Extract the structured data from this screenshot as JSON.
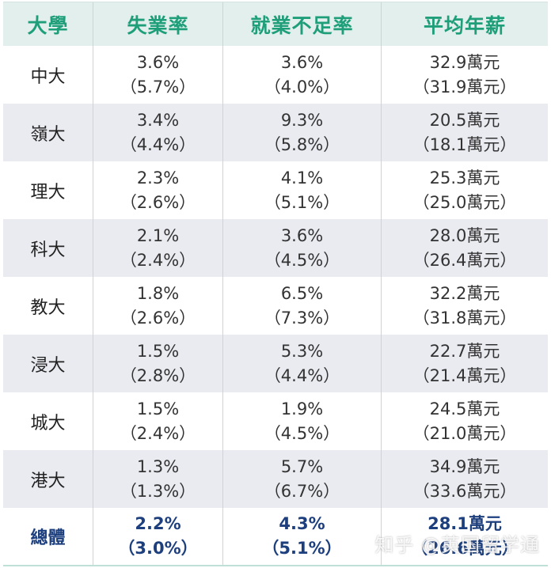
{
  "headers": [
    "大學",
    "失業率",
    "就業不足率",
    "平均年薪"
  ],
  "rows": [
    {
      "university": "中大",
      "unemployment": "3.6%",
      "unemployment_prev": "（5.7%）",
      "underemployment": "3.6%",
      "underemployment_prev": "（4.0%）",
      "salary": "32.9萬元",
      "salary_prev": "（31.9萬元）"
    },
    {
      "university": "嶺大",
      "unemployment": "3.4%",
      "unemployment_prev": "（4.4%）",
      "underemployment": "9.3%",
      "underemployment_prev": "（5.8%）",
      "salary": "20.5萬元",
      "salary_prev": "（18.1萬元）"
    },
    {
      "university": "理大",
      "unemployment": "2.3%",
      "unemployment_prev": "（2.6%）",
      "underemployment": "4.1%",
      "underemployment_prev": "（5.1%）",
      "salary": "25.3萬元",
      "salary_prev": "（25.0萬元）"
    },
    {
      "university": "科大",
      "unemployment": "2.1%",
      "unemployment_prev": "（2.4%）",
      "underemployment": "3.6%",
      "underemployment_prev": "（4.5%）",
      "salary": "28.0萬元",
      "salary_prev": "（26.4萬元）"
    },
    {
      "university": "教大",
      "unemployment": "1.8%",
      "unemployment_prev": "（2.6%）",
      "underemployment": "6.5%",
      "underemployment_prev": "（7.3%）",
      "salary": "32.2萬元",
      "salary_prev": "（31.8萬元）"
    },
    {
      "university": "浸大",
      "unemployment": "1.5%",
      "unemployment_prev": "（2.8%）",
      "underemployment": "5.3%",
      "underemployment_prev": "（4.4%）",
      "salary": "22.7萬元",
      "salary_prev": "（21.4萬元）"
    },
    {
      "university": "城大",
      "unemployment": "1.5%",
      "unemployment_prev": "（2.4%）",
      "underemployment": "1.9%",
      "underemployment_prev": "（4.5%）",
      "salary": "24.5萬元",
      "salary_prev": "（21.0萬元）"
    },
    {
      "university": "港大",
      "unemployment": "1.3%",
      "unemployment_prev": "（1.3%）",
      "underemployment": "5.7%",
      "underemployment_prev": "（6.7%）",
      "salary": "34.9萬元",
      "salary_prev": "（33.6萬元）"
    }
  ],
  "total": {
    "university": "總體",
    "unemployment": "2.2%",
    "unemployment_prev": "（3.0%）",
    "underemployment": "4.3%",
    "underemployment_prev": "（5.1%）",
    "salary": "28.1萬元",
    "salary_prev": "（26.6萬元）"
  },
  "watermark": "知乎 @英国留学通",
  "colors": {
    "header_text": "#1f9e7a",
    "header_bg": "#e3efec",
    "alt_row_bg": "#e9ebf0",
    "total_text": "#1d3f7d"
  }
}
